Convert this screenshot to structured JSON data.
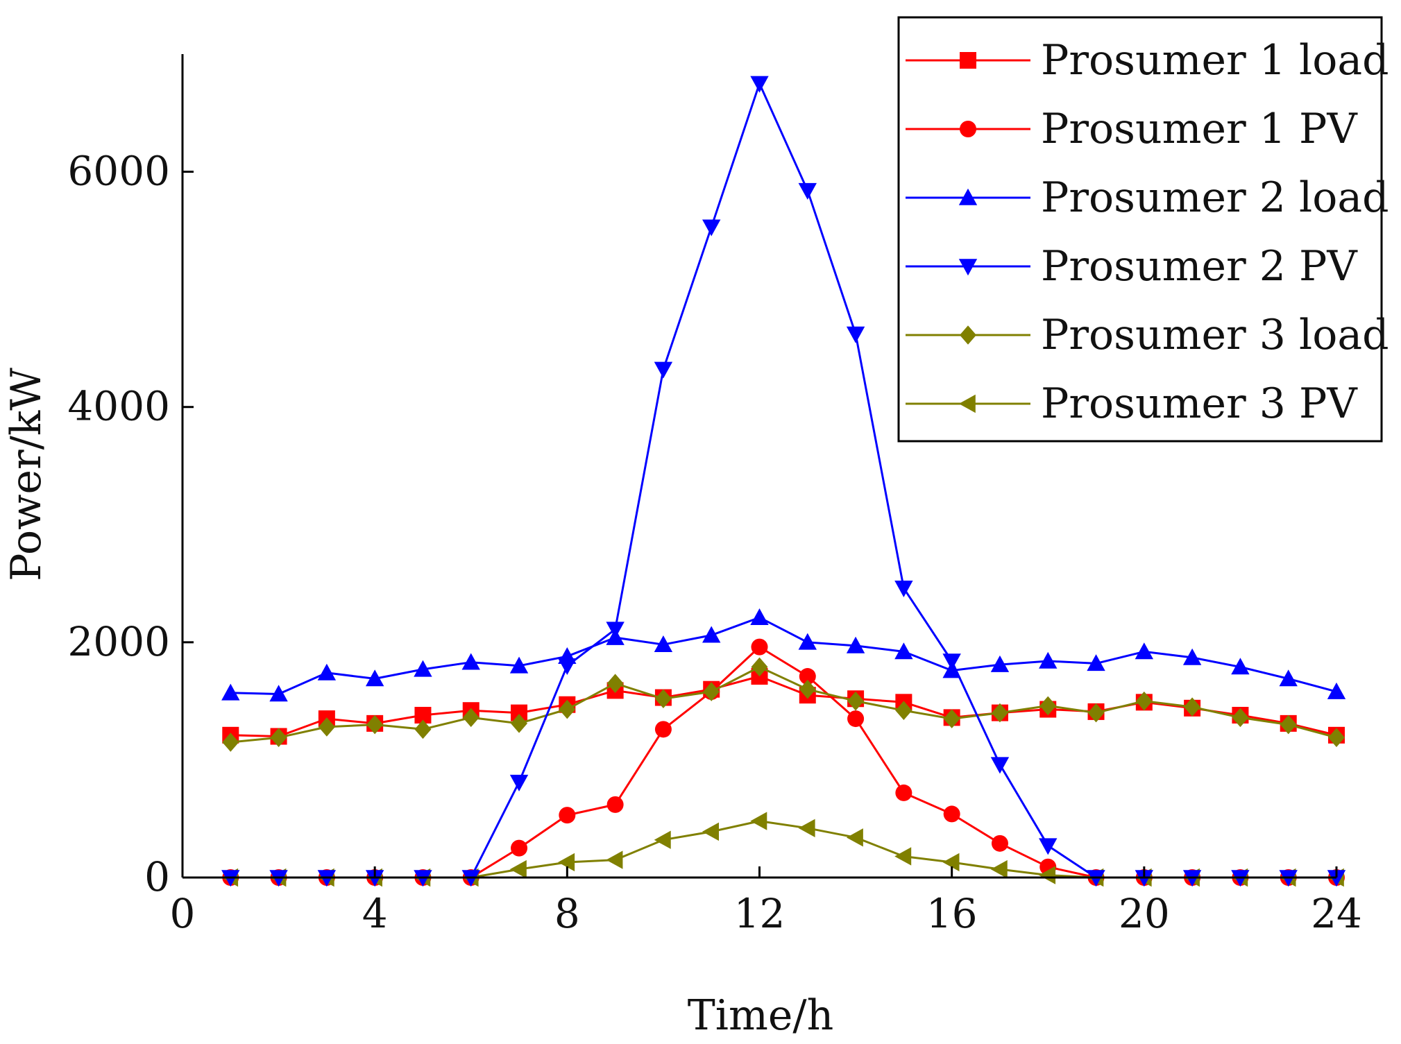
{
  "chart_data": {
    "type": "line",
    "title": "",
    "xlabel": "Time/h",
    "ylabel": "Power/kW",
    "xlim": [
      0,
      24
    ],
    "ylim": [
      0,
      7000
    ],
    "xticks": [
      0,
      4,
      8,
      12,
      16,
      20,
      24
    ],
    "yticks": [
      0,
      2000,
      4000,
      6000
    ],
    "xtick_labels": [
      "0",
      "4",
      "8",
      "12",
      "16",
      "20",
      "24"
    ],
    "ytick_labels": [
      "0",
      "2000",
      "4000",
      "6000"
    ],
    "grid": false,
    "legend_position": "top-right",
    "x": [
      1,
      2,
      3,
      4,
      5,
      6,
      7,
      8,
      9,
      10,
      11,
      12,
      13,
      14,
      15,
      16,
      17,
      18,
      19,
      20,
      21,
      22,
      23,
      24
    ],
    "series": [
      {
        "name": "Prosumer 1 load",
        "color": "#ff0000",
        "marker": "square",
        "values": [
          1210,
          1200,
          1350,
          1310,
          1380,
          1420,
          1400,
          1470,
          1590,
          1530,
          1600,
          1710,
          1550,
          1520,
          1490,
          1360,
          1400,
          1430,
          1410,
          1490,
          1440,
          1380,
          1310,
          1210
        ]
      },
      {
        "name": "Prosumer 1 PV",
        "color": "#ff0000",
        "marker": "circle",
        "values": [
          0,
          0,
          0,
          0,
          0,
          0,
          250,
          530,
          620,
          1260,
          1580,
          1960,
          1710,
          1350,
          720,
          540,
          290,
          90,
          0,
          0,
          0,
          0,
          0,
          0
        ]
      },
      {
        "name": "Prosumer 2 load",
        "color": "#0000ff",
        "marker": "triangle-up",
        "values": [
          1570,
          1560,
          1740,
          1690,
          1770,
          1830,
          1800,
          1880,
          2040,
          1980,
          2060,
          2210,
          2000,
          1970,
          1920,
          1760,
          1810,
          1840,
          1820,
          1920,
          1870,
          1790,
          1690,
          1580
        ]
      },
      {
        "name": "Prosumer 2 PV",
        "color": "#0000ff",
        "marker": "triangle-down",
        "values": [
          0,
          0,
          0,
          0,
          0,
          0,
          810,
          1800,
          2110,
          4320,
          5530,
          6750,
          5840,
          4620,
          2460,
          1840,
          960,
          270,
          0,
          0,
          0,
          0,
          0,
          0
        ]
      },
      {
        "name": "Prosumer 3 load",
        "color": "#808000",
        "marker": "diamond",
        "values": [
          1150,
          1190,
          1280,
          1300,
          1260,
          1360,
          1310,
          1430,
          1650,
          1520,
          1580,
          1790,
          1600,
          1500,
          1420,
          1350,
          1400,
          1460,
          1400,
          1500,
          1450,
          1360,
          1300,
          1190
        ]
      },
      {
        "name": "Prosumer 3 PV",
        "color": "#808000",
        "marker": "triangle-left",
        "values": [
          0,
          0,
          0,
          0,
          0,
          0,
          70,
          130,
          150,
          320,
          390,
          480,
          420,
          340,
          180,
          130,
          70,
          20,
          0,
          0,
          0,
          0,
          0,
          0
        ]
      }
    ]
  }
}
